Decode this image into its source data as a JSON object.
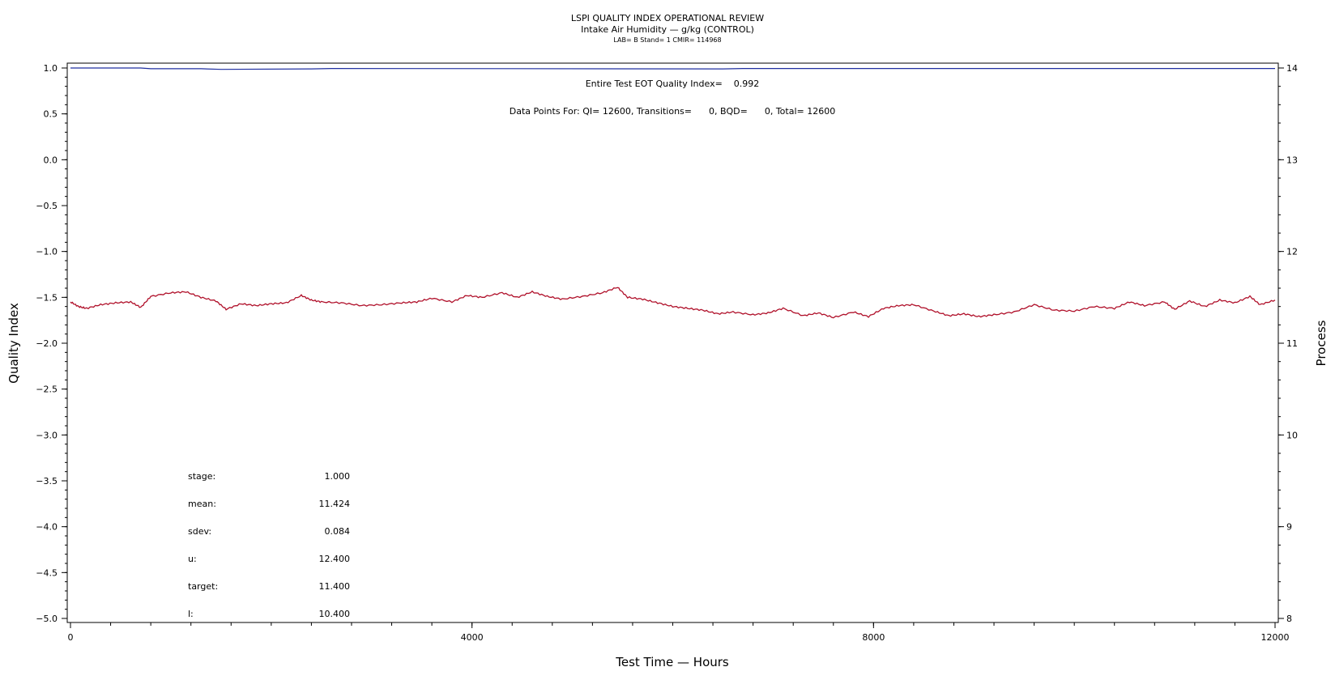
{
  "chart_data": {
    "type": "line",
    "title": "LSPI QUALITY INDEX OPERATIONAL REVIEW",
    "subtitle": "Intake Air Humidity — g/kg (CONTROL)",
    "sub_subtitle": "LAB= B Stand= 1 CMIR= 114968",
    "xlabel": "Test Time — Hours",
    "ylabel_left": "Quality Index",
    "ylabel_right": "Process",
    "xlim": [
      0,
      12000
    ],
    "ylim_left": [
      -5.0,
      1.0
    ],
    "ylim_right": [
      8,
      14
    ],
    "x_ticks": [
      "0",
      "4000",
      "8000",
      "12000"
    ],
    "y_left_ticks": [
      "1.0",
      "0.5",
      "0.0",
      "−0.5",
      "−1.0",
      "−1.5",
      "−2.0",
      "−2.5",
      "−3.0",
      "−3.5",
      "−4.0",
      "−4.5",
      "−5.0"
    ],
    "y_right_ticks": [
      "14",
      "13",
      "12",
      "11",
      "10",
      "9",
      "8"
    ],
    "annotations": {
      "eot_line": "Entire Test EOT Quality Index=    0.992",
      "datapoints_line": "Data Points For: QI= 12600, Transitions=      0, BQD=      0, Total= 12600"
    },
    "stats": [
      {
        "label": "stage:",
        "value": "1.000"
      },
      {
        "label": "mean:",
        "value": "11.424"
      },
      {
        "label": "sdev:",
        "value": "0.084"
      },
      {
        "label": "u:",
        "value": "12.400"
      },
      {
        "label": "target:",
        "value": "11.400"
      },
      {
        "label": "l:",
        "value": "10.400"
      }
    ],
    "series": [
      {
        "axis": "left",
        "color": "#1f2fa0",
        "x": [
          0,
          700,
          800,
          1300,
          1500,
          2400,
          2600,
          6500,
          6700,
          12000
        ],
        "values": [
          1.0,
          1.0,
          0.992,
          0.992,
          0.985,
          0.99,
          0.995,
          0.99,
          0.995,
          0.995
        ]
      },
      {
        "axis": "right",
        "color": "#b0102a",
        "x": [
          0,
          80,
          160,
          300,
          450,
          600,
          700,
          800,
          1000,
          1150,
          1300,
          1450,
          1550,
          1700,
          1850,
          2000,
          2150,
          2300,
          2400,
          2500,
          2700,
          2900,
          3100,
          3300,
          3450,
          3600,
          3800,
          3950,
          4100,
          4300,
          4450,
          4600,
          4750,
          4900,
          5100,
          5300,
          5450,
          5550,
          5700,
          5850,
          6000,
          6150,
          6300,
          6450,
          6600,
          6800,
          6950,
          7100,
          7300,
          7450,
          7600,
          7800,
          7950,
          8100,
          8250,
          8400,
          8600,
          8750,
          8900,
          9050,
          9200,
          9400,
          9600,
          9800,
          10000,
          10200,
          10400,
          10550,
          10700,
          10900,
          11000,
          11150,
          11300,
          11450,
          11600,
          11750,
          11850,
          12000
        ],
        "values": [
          11.45,
          11.4,
          11.38,
          11.42,
          11.44,
          11.45,
          11.39,
          11.51,
          11.55,
          11.56,
          11.5,
          11.46,
          11.37,
          11.43,
          11.41,
          11.43,
          11.44,
          11.52,
          11.47,
          11.45,
          11.44,
          11.41,
          11.42,
          11.44,
          11.45,
          11.49,
          11.45,
          11.52,
          11.5,
          11.55,
          11.5,
          11.56,
          11.51,
          11.48,
          11.51,
          11.55,
          11.61,
          11.5,
          11.48,
          11.44,
          11.4,
          11.38,
          11.36,
          11.32,
          11.34,
          11.31,
          11.33,
          11.38,
          11.3,
          11.33,
          11.28,
          11.34,
          11.29,
          11.38,
          11.41,
          11.42,
          11.35,
          11.3,
          11.32,
          11.29,
          11.31,
          11.34,
          11.42,
          11.36,
          11.35,
          11.4,
          11.38,
          11.45,
          11.41,
          11.45,
          11.37,
          11.46,
          11.4,
          11.47,
          11.44,
          11.51,
          11.42,
          11.47
        ]
      }
    ]
  }
}
